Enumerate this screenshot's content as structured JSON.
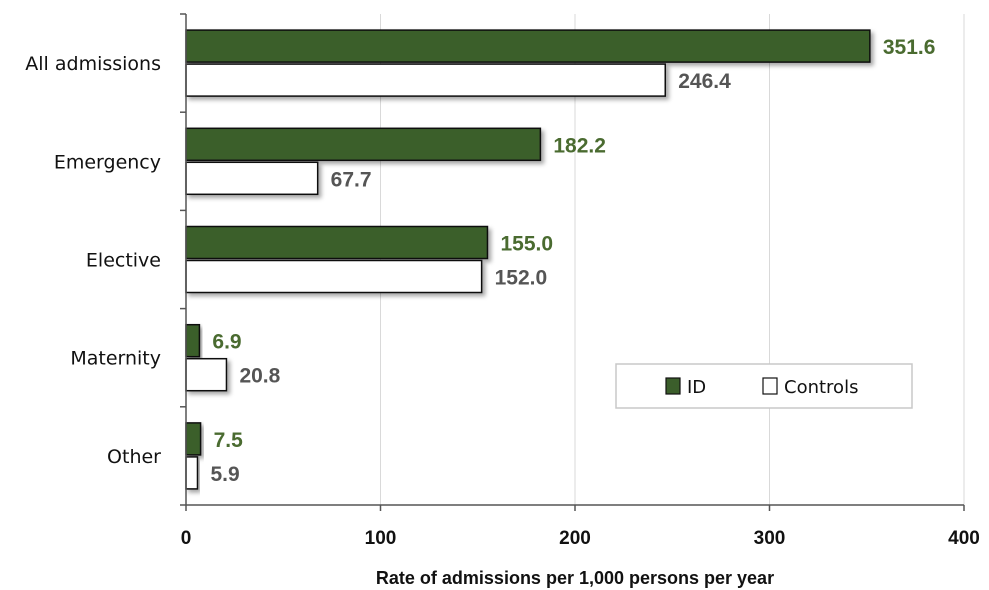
{
  "chart_data": {
    "type": "bar",
    "orientation": "horizontal",
    "categories": [
      "All admissions",
      "Emergency",
      "Elective",
      "Maternity",
      "Other"
    ],
    "series": [
      {
        "name": "ID",
        "values": [
          351.6,
          182.2,
          155.0,
          6.9,
          7.5
        ],
        "value_labels": [
          "351.6",
          "182.2",
          "155.0",
          "6.9",
          "7.5"
        ],
        "color": "#3b5e2b",
        "label_color": "#4a6b30"
      },
      {
        "name": "Controls",
        "values": [
          246.4,
          67.7,
          152.0,
          20.8,
          5.9
        ],
        "value_labels": [
          "246.4",
          "67.7",
          "152.0",
          "20.8",
          "5.9"
        ],
        "color": "#ffffff",
        "label_color": "#555555"
      }
    ],
    "xlabel": "Rate of admissions per 1,000 persons per year",
    "ylabel": "",
    "xlim": [
      0,
      400
    ],
    "xticks": [
      0,
      100,
      200,
      300,
      400
    ],
    "xtick_labels": [
      "0",
      "100",
      "200",
      "300",
      "400"
    ],
    "grid": "vertical",
    "legend_position": "right"
  }
}
